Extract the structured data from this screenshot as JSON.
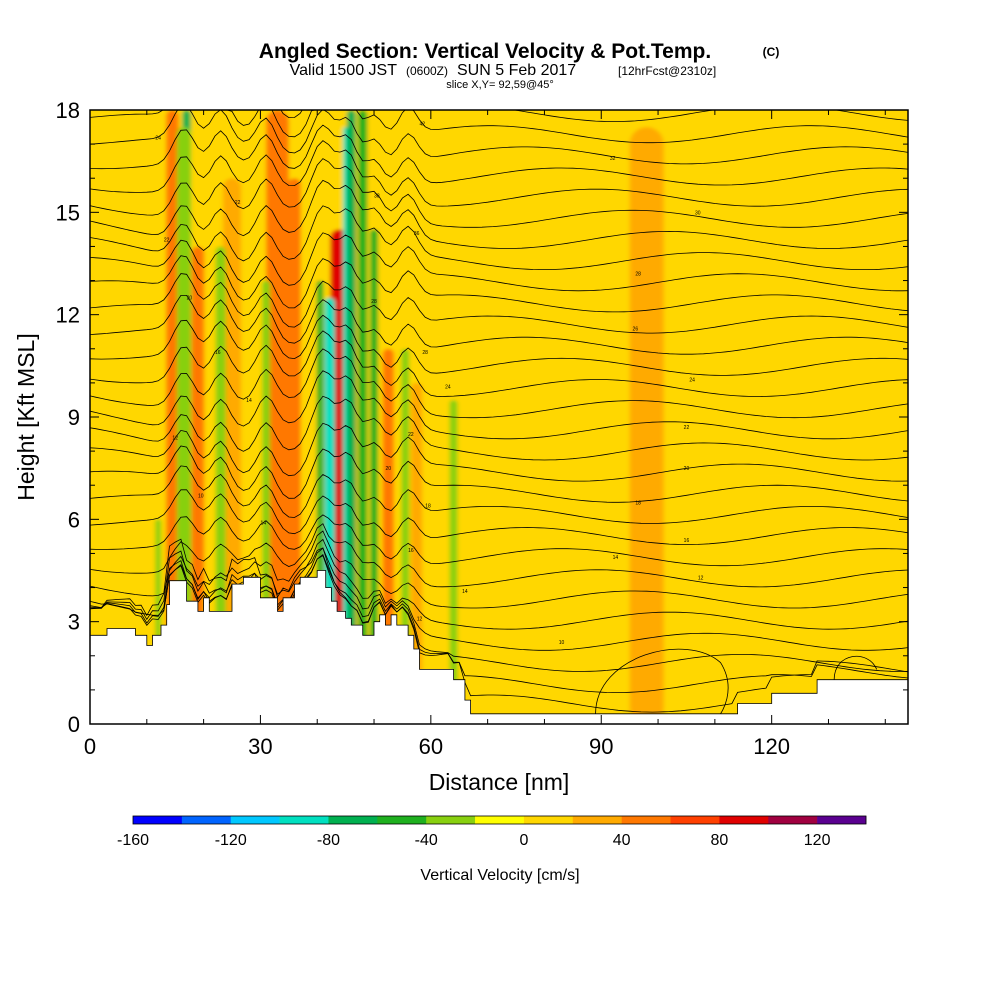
{
  "chart_data": {
    "type": "heatmap",
    "title": {
      "main": "Angled Section: Vertical Velocity & Pot.Temp.",
      "main_suffix": "(C)",
      "valid_prefix": "Valid 1500 JST",
      "valid_utc": "(0600Z)",
      "valid_date": "SUN 5 Feb 2017",
      "fcst": "[12hrFcst@2310z]",
      "slice": "slice X,Y= 92,59@45°"
    },
    "xlabel": "Distance [nm]",
    "ylabel": "Height [Kft MSL]",
    "xlim": [
      0,
      144
    ],
    "ylim": [
      0,
      18
    ],
    "x_ticks": [
      0,
      30,
      60,
      90,
      120
    ],
    "y_ticks": [
      0,
      3,
      6,
      9,
      12,
      15,
      18
    ],
    "colorbar": {
      "title": "Vertical Velocity [cm/s]",
      "levels": [
        -160,
        -140,
        -120,
        -100,
        -80,
        -60,
        -40,
        -20,
        0,
        20,
        40,
        60,
        80,
        100,
        120,
        140
      ],
      "tick_labels": [
        "-160",
        "-120",
        "-80",
        "-40",
        "0",
        "40",
        "80",
        "120"
      ],
      "colors": [
        "#0000ff",
        "#0064ff",
        "#00c8ff",
        "#00e0c0",
        "#00b050",
        "#1fb01f",
        "#88d010",
        "#ffff00",
        "#ffd700",
        "#ffaa00",
        "#ff7800",
        "#ff4000",
        "#e00000",
        "#a00040",
        "#5a0090"
      ]
    },
    "background_value": 10,
    "updraft_bands": [
      {
        "x": 14.5,
        "w": 2.2,
        "ytop": 18,
        "value": 45
      },
      {
        "x": 19,
        "w": 2.2,
        "ytop": 14,
        "value": 50
      },
      {
        "x": 25,
        "w": 3.2,
        "ytop": 16,
        "value": 35
      },
      {
        "x": 33,
        "w": 4,
        "ytop": 18,
        "value": 45
      },
      {
        "x": 36,
        "w": 2.2,
        "ytop": 16,
        "value": 45
      },
      {
        "x": 43.5,
        "w": 1.4,
        "ytop": 13.5,
        "value": 115
      },
      {
        "x": 43.8,
        "w": 3,
        "ytop": 14.5,
        "value": 80
      },
      {
        "x": 46,
        "w": 1.8,
        "ytop": 16,
        "value": 45
      },
      {
        "x": 52.5,
        "w": 2,
        "ytop": 11,
        "value": 45
      },
      {
        "x": 57.5,
        "w": 2,
        "ytop": 10,
        "value": 35
      },
      {
        "x": 98,
        "w": 6,
        "ytop": 17.5,
        "value": 25
      }
    ],
    "downdraft_bands": [
      {
        "x": 17,
        "w": 1.5,
        "ytop": 18,
        "value": -70
      },
      {
        "x": 16.5,
        "w": 2.4,
        "ytop": 17.5,
        "value": -35
      },
      {
        "x": 23,
        "w": 1.8,
        "ytop": 14,
        "value": -30
      },
      {
        "x": 31,
        "w": 1.4,
        "ytop": 13,
        "value": -30
      },
      {
        "x": 40.5,
        "w": 1.2,
        "ytop": 13,
        "value": -55
      },
      {
        "x": 41.7,
        "w": 0.9,
        "ytop": 12,
        "value": -130
      },
      {
        "x": 42.2,
        "w": 1.8,
        "ytop": 12.5,
        "value": -90
      },
      {
        "x": 45,
        "w": 0.9,
        "ytop": 17.5,
        "value": -90
      },
      {
        "x": 46,
        "w": 1.6,
        "ytop": 18,
        "value": -70
      },
      {
        "x": 48,
        "w": 1.6,
        "ytop": 18,
        "value": -55
      },
      {
        "x": 50,
        "w": 1.4,
        "ytop": 14.5,
        "value": -55
      },
      {
        "x": 55.5,
        "w": 1.4,
        "ytop": 11,
        "value": -40
      },
      {
        "x": 64,
        "w": 1.4,
        "ytop": 9.5,
        "value": -30
      },
      {
        "x": 12,
        "w": 1,
        "ytop": 6,
        "value": -35
      }
    ],
    "isotherm_labels": [
      {
        "x": 12,
        "y": 17.2,
        "text": "24"
      },
      {
        "x": 26,
        "y": 15.3,
        "text": "22"
      },
      {
        "x": 13.5,
        "y": 14.2,
        "text": "22"
      },
      {
        "x": 17.5,
        "y": 12.5,
        "text": "20"
      },
      {
        "x": 22.5,
        "y": 10.9,
        "text": "16"
      },
      {
        "x": 28,
        "y": 9.5,
        "text": "14"
      },
      {
        "x": 15,
        "y": 8.4,
        "text": "12"
      },
      {
        "x": 19.5,
        "y": 6.7,
        "text": "10"
      },
      {
        "x": 30.5,
        "y": 5.9,
        "text": "14"
      },
      {
        "x": 58.5,
        "y": 17.6,
        "text": "42"
      },
      {
        "x": 50.5,
        "y": 15.5,
        "text": "38"
      },
      {
        "x": 57.5,
        "y": 14.4,
        "text": "36"
      },
      {
        "x": 50,
        "y": 12.4,
        "text": "28"
      },
      {
        "x": 59,
        "y": 10.9,
        "text": "28"
      },
      {
        "x": 63,
        "y": 9.9,
        "text": "24"
      },
      {
        "x": 56.5,
        "y": 8.5,
        "text": "22"
      },
      {
        "x": 52.5,
        "y": 7.5,
        "text": "20"
      },
      {
        "x": 59.5,
        "y": 6.4,
        "text": "18"
      },
      {
        "x": 56.5,
        "y": 5.1,
        "text": "16"
      },
      {
        "x": 66,
        "y": 3.9,
        "text": "14"
      },
      {
        "x": 58,
        "y": 3.1,
        "text": "12"
      },
      {
        "x": 83,
        "y": 2.4,
        "text": "10"
      },
      {
        "x": 92,
        "y": 16.6,
        "text": "32"
      },
      {
        "x": 107,
        "y": 15,
        "text": "30"
      },
      {
        "x": 96.5,
        "y": 13.2,
        "text": "28"
      },
      {
        "x": 96,
        "y": 11.6,
        "text": "26"
      },
      {
        "x": 106,
        "y": 10.1,
        "text": "24"
      },
      {
        "x": 105,
        "y": 8.7,
        "text": "22"
      },
      {
        "x": 105,
        "y": 7.5,
        "text": "20"
      },
      {
        "x": 96.5,
        "y": 6.5,
        "text": "18"
      },
      {
        "x": 105,
        "y": 5.4,
        "text": "16"
      },
      {
        "x": 92.5,
        "y": 4.9,
        "text": "14"
      },
      {
        "x": 107.5,
        "y": 4.3,
        "text": "12"
      }
    ]
  }
}
